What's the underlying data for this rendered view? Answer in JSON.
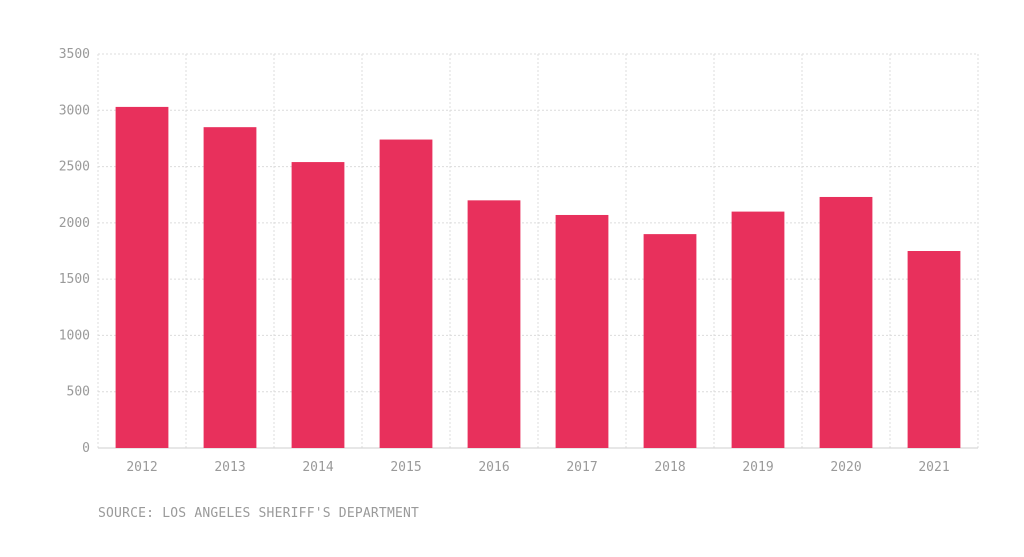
{
  "chart_data": {
    "type": "bar",
    "categories": [
      "2012",
      "2013",
      "2014",
      "2015",
      "2016",
      "2017",
      "2018",
      "2019",
      "2020",
      "2021"
    ],
    "values": [
      3030,
      2850,
      2540,
      2740,
      2200,
      2070,
      1900,
      2100,
      2230,
      1750
    ],
    "title": "",
    "xlabel": "",
    "ylabel": "",
    "ylim": [
      0,
      3500
    ],
    "yticks": [
      0,
      500,
      1000,
      1500,
      2000,
      2500,
      3000,
      3500
    ],
    "grid": true,
    "bar_color": "#e8305c"
  },
  "source_note": "SOURCE: LOS ANGELES SHERIFF'S DEPARTMENT"
}
